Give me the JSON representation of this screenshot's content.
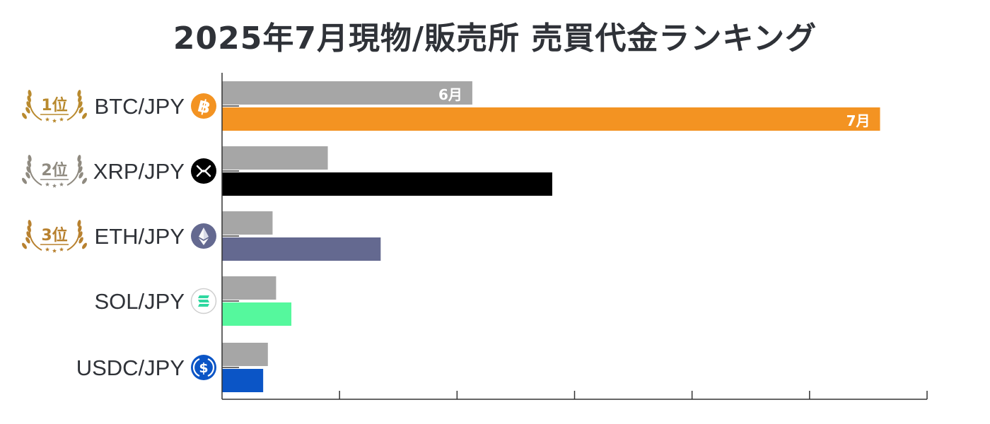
{
  "title": "2025年7月現物/販売所 売買代金ランキング",
  "chart_data": {
    "type": "bar",
    "orientation": "horizontal",
    "title": "2025年7月現物/販売所 売買代金ランキング",
    "categories": [
      "BTC/JPY",
      "XRP/JPY",
      "ETH/JPY",
      "SOL/JPY",
      "USDC/JPY"
    ],
    "series": [
      {
        "name": "6月",
        "color": "#a6a6a6",
        "values": [
          21.3,
          9.0,
          4.3,
          4.6,
          3.9
        ]
      },
      {
        "name": "7月",
        "colors": [
          "#f39322",
          "#000000",
          "#646990",
          "#55f89d",
          "#0b55c6"
        ],
        "values": [
          56.0,
          28.1,
          13.5,
          5.9,
          3.5
        ]
      }
    ],
    "xlim": [
      0,
      60
    ],
    "x_tick_labels_shown": false,
    "grid": false,
    "legend": "inline labels on BTC/JPY bars",
    "ranks": [
      {
        "category": "BTC/JPY",
        "label": "1位",
        "color": "#b98a2e"
      },
      {
        "category": "XRP/JPY",
        "label": "2位",
        "color": "#8f8a80"
      },
      {
        "category": "ETH/JPY",
        "label": "3位",
        "color": "#b8812f"
      }
    ],
    "icons": [
      "bitcoin-icon",
      "xrp-icon",
      "ethereum-icon",
      "solana-icon",
      "usdc-icon"
    ]
  }
}
